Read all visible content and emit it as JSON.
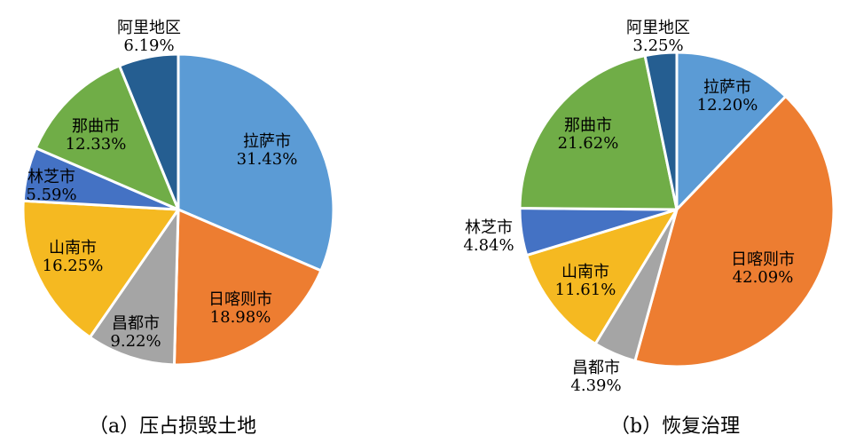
{
  "chart_data": [
    {
      "type": "pie",
      "title": "",
      "caption": "（a）压占损毁土地",
      "slices": [
        {
          "label": "拉萨市",
          "value": 31.43,
          "value_label": "31.43%",
          "color": "#5B9BD5"
        },
        {
          "label": "日喀则市",
          "value": 18.98,
          "value_label": "18.98%",
          "color": "#ED7D31"
        },
        {
          "label": "昌都市",
          "value": 9.22,
          "value_label": "9.22%",
          "color": "#A5A5A5"
        },
        {
          "label": "山南市",
          "value": 16.25,
          "value_label": "16.25%",
          "color": "#F5B921"
        },
        {
          "label": "林芝市",
          "value": 5.59,
          "value_label": "5.59%",
          "color": "#4472C4"
        },
        {
          "label": "那曲市",
          "value": 12.33,
          "value_label": "12.33%",
          "color": "#70AD47"
        },
        {
          "label": "阿里地区",
          "value": 6.19,
          "value_label": "6.19%",
          "color": "#255E91"
        }
      ]
    },
    {
      "type": "pie",
      "title": "",
      "caption": "（b）恢复治理",
      "slices": [
        {
          "label": "拉萨市",
          "value": 12.2,
          "value_label": "12.20%",
          "color": "#5B9BD5"
        },
        {
          "label": "日喀则市",
          "value": 42.09,
          "value_label": "42.09%",
          "color": "#ED7D31"
        },
        {
          "label": "昌都市",
          "value": 4.39,
          "value_label": "4.39%",
          "color": "#A5A5A5"
        },
        {
          "label": "山南市",
          "value": 11.61,
          "value_label": "11.61%",
          "color": "#F5B921"
        },
        {
          "label": "林芝市",
          "value": 4.84,
          "value_label": "4.84%",
          "color": "#4472C4"
        },
        {
          "label": "那曲市",
          "value": 21.62,
          "value_label": "21.62%",
          "color": "#70AD47"
        },
        {
          "label": "阿里地区",
          "value": 3.25,
          "value_label": "3.25%",
          "color": "#255E91"
        }
      ]
    }
  ]
}
